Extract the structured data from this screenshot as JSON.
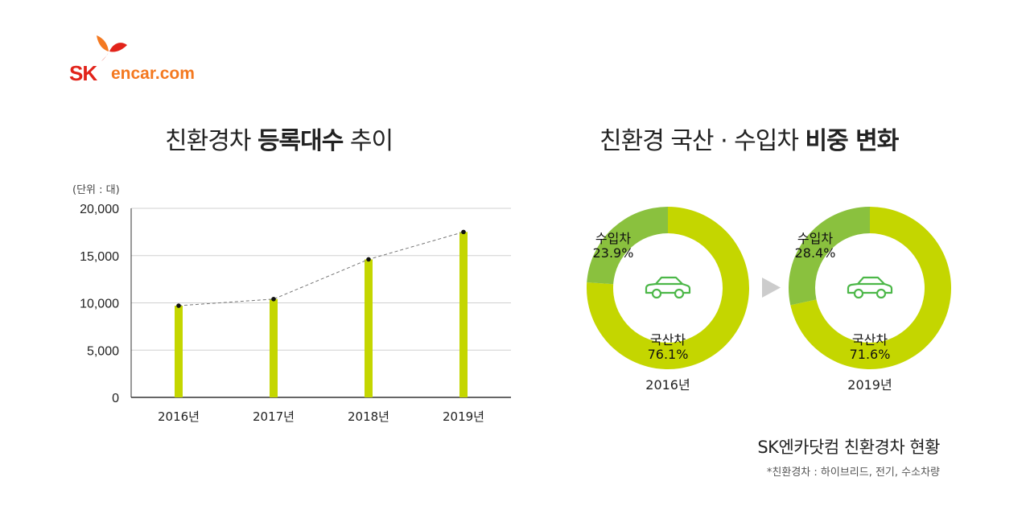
{
  "brand": {
    "sk": "SK",
    "encar": "encar.com"
  },
  "left_title": {
    "normal1": "친환경차 ",
    "bold": "등록대수",
    "normal2": " 추이"
  },
  "right_title": {
    "normal": "친환경 국산 · 수입차 ",
    "bold": "비중 변화"
  },
  "unit_label": "(단위 : 대)",
  "caption": "SK엔카닷컴 친환경차 현황",
  "footnote": "*친환경차 : 하이브리드, 전기, 수소차량",
  "colors": {
    "bar": "#c4d600",
    "domestic": "#c4d600",
    "import": "#8ac13e",
    "car_icon": "#4cb748",
    "arrow": "#cccccc"
  },
  "chart_data": [
    {
      "type": "bar",
      "categories": [
        "2016년",
        "2017년",
        "2018년",
        "2019년"
      ],
      "values": [
        9700,
        10400,
        14600,
        17500
      ],
      "ylim": [
        0,
        20000
      ],
      "yticks": [
        "0",
        "5,000",
        "10,000",
        "15,000",
        "20,000"
      ],
      "grid": true,
      "overlay": "dashed line through bar tops"
    },
    {
      "type": "pie",
      "donut": true,
      "label": "2016년",
      "slices": [
        {
          "name": "수입차",
          "value": 23.9,
          "display": "23.9%"
        },
        {
          "name": "국산차",
          "value": 76.1,
          "display": "76.1%"
        }
      ]
    },
    {
      "type": "pie",
      "donut": true,
      "label": "2019년",
      "slices": [
        {
          "name": "수입차",
          "value": 28.4,
          "display": "28.4%"
        },
        {
          "name": "국산차",
          "value": 71.6,
          "display": "71.6%"
        }
      ]
    }
  ]
}
